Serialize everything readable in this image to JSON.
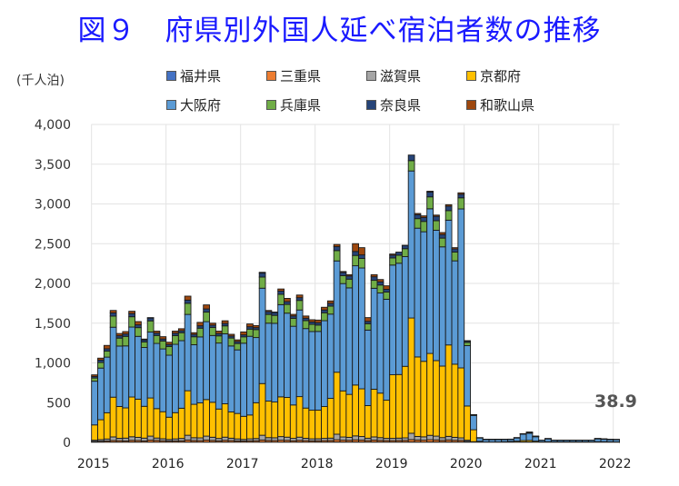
{
  "chart_data": {
    "type": "bar",
    "stacked": true,
    "title": "図９　府県別外国人延べ宿泊者数の推移",
    "ylabel": "(千人泊)",
    "xlabel": "",
    "ylim": [
      0,
      4000
    ],
    "yticks": [
      0,
      500,
      1000,
      1500,
      2000,
      2500,
      3000,
      3500,
      4000
    ],
    "ytick_labels": [
      "0",
      "500",
      "1,000",
      "1,500",
      "2,000",
      "2,500",
      "3,000",
      "3,500",
      "4,000"
    ],
    "xtick_labels": [
      "2015",
      "2016",
      "2017",
      "2018",
      "2019",
      "2020",
      "2021",
      "2022"
    ],
    "grid": true,
    "legend_position": "top",
    "annotation": "38.9",
    "start": "2015-01",
    "series": [
      {
        "name": "福井県",
        "color": "#4472c4",
        "values": [
          3,
          3,
          3,
          4,
          4,
          3,
          4,
          4,
          3,
          4,
          3,
          3,
          3,
          3,
          3,
          4,
          4,
          3,
          4,
          4,
          3,
          4,
          3,
          3,
          3,
          3,
          3,
          4,
          4,
          3,
          4,
          4,
          3,
          4,
          3,
          3,
          4,
          4,
          4,
          5,
          5,
          4,
          5,
          5,
          4,
          5,
          4,
          4,
          4,
          4,
          4,
          5,
          5,
          4,
          5,
          5,
          4,
          5,
          4,
          4,
          3,
          1,
          0.5,
          0.3,
          0.3,
          0.3,
          0.4,
          0.4,
          0.5,
          0.6,
          0.6,
          0.5,
          0.3,
          0.4,
          0.3,
          0.3,
          0.3,
          0.3,
          0.3,
          0.3,
          0.3,
          0.4,
          0.4,
          0.4,
          0.3
        ]
      },
      {
        "name": "三重県",
        "color": "#ed7d31",
        "values": [
          10,
          12,
          15,
          20,
          18,
          16,
          22,
          20,
          16,
          25,
          22,
          18,
          14,
          16,
          17,
          26,
          20,
          19,
          25,
          21,
          17,
          22,
          20,
          16,
          15,
          17,
          18,
          26,
          21,
          20,
          24,
          22,
          18,
          22,
          19,
          17,
          17,
          19,
          20,
          28,
          23,
          22,
          27,
          24,
          19,
          24,
          21,
          19,
          19,
          20,
          21,
          30,
          25,
          24,
          29,
          26,
          21,
          26,
          22,
          21,
          10,
          3,
          1,
          0.5,
          0.5,
          0.5,
          0.6,
          0.8,
          1,
          2,
          2,
          1.5,
          0.8,
          1,
          0.8,
          0.8,
          0.8,
          0.8,
          0.8,
          0.8,
          0.8,
          1.2,
          1.2,
          1,
          0.8
        ]
      },
      {
        "name": "滋賀県",
        "color": "#a5a5a5",
        "values": [
          15,
          20,
          25,
          45,
          30,
          35,
          45,
          40,
          35,
          50,
          30,
          25,
          20,
          25,
          30,
          60,
          35,
          35,
          50,
          40,
          30,
          40,
          30,
          25,
          20,
          25,
          28,
          60,
          35,
          35,
          45,
          40,
          30,
          40,
          30,
          25,
          25,
          28,
          30,
          70,
          40,
          38,
          50,
          45,
          30,
          40,
          35,
          28,
          28,
          30,
          32,
          80,
          45,
          42,
          55,
          48,
          35,
          45,
          38,
          32,
          15,
          5,
          2,
          1,
          1,
          1,
          1.5,
          2,
          2,
          3,
          3,
          2,
          1,
          1.5,
          1,
          1,
          1,
          1,
          1,
          1,
          1,
          1.5,
          1.5,
          1.2,
          1
        ]
      },
      {
        "name": "京都府",
        "color": "#ffc000",
        "values": [
          192,
          250,
          330,
          500,
          400,
          380,
          500,
          480,
          400,
          480,
          370,
          340,
          280,
          330,
          380,
          560,
          420,
          440,
          460,
          440,
          370,
          420,
          330,
          320,
          290,
          300,
          450,
          650,
          460,
          450,
          500,
          500,
          420,
          510,
          380,
          360,
          360,
          400,
          500,
          780,
          580,
          540,
          640,
          600,
          410,
          600,
          560,
          480,
          800,
          800,
          900,
          1450,
          1000,
          950,
          1030,
          950,
          900,
          1150,
          920,
          880,
          430,
          150,
          10,
          3,
          3,
          4,
          6,
          9,
          12,
          18,
          20,
          12,
          4,
          6,
          4,
          4,
          4,
          4,
          4,
          4,
          4,
          6,
          6,
          5,
          4
        ]
      },
      {
        "name": "大阪府",
        "color": "#5b9bd5",
        "values": [
          550,
          650,
          700,
          880,
          760,
          780,
          880,
          790,
          740,
          830,
          820,
          790,
          780,
          860,
          850,
          960,
          750,
          830,
          980,
          840,
          830,
          880,
          830,
          800,
          920,
          990,
          820,
          1200,
          980,
          990,
          1160,
          1060,
          990,
          1090,
          1000,
          990,
          990,
          1080,
          1060,
          1400,
          1350,
          1340,
          1500,
          1520,
          950,
          1270,
          1260,
          1270,
          1380,
          1400,
          1380,
          1850,
          1620,
          1630,
          1820,
          1640,
          1500,
          1570,
          1300,
          2000,
          760,
          180,
          42,
          30,
          30,
          30,
          28,
          25,
          40,
          80,
          90,
          55,
          20,
          35,
          20,
          20,
          20,
          20,
          20,
          20,
          20,
          35,
          30,
          27,
          27
        ]
      },
      {
        "name": "兵庫県",
        "color": "#70ad47",
        "values": [
          40,
          70,
          75,
          140,
          100,
          120,
          130,
          110,
          70,
          140,
          100,
          100,
          110,
          110,
          100,
          140,
          100,
          110,
          120,
          100,
          90,
          100,
          100,
          80,
          80,
          90,
          100,
          140,
          110,
          100,
          130,
          110,
          100,
          120,
          100,
          90,
          80,
          100,
          100,
          130,
          100,
          110,
          130,
          120,
          80,
          100,
          100,
          90,
          90,
          100,
          100,
          130,
          120,
          130,
          150,
          120,
          110,
          120,
          110,
          140,
          40,
          8,
          2,
          2,
          2,
          2,
          2,
          2,
          3,
          4,
          5,
          4,
          2,
          2,
          2,
          2,
          2,
          2,
          2,
          2,
          2,
          3,
          3,
          2.5,
          2.5
        ]
      },
      {
        "name": "奈良県",
        "color": "#264478",
        "values": [
          20,
          30,
          30,
          40,
          30,
          30,
          40,
          35,
          25,
          35,
          30,
          25,
          25,
          30,
          25,
          40,
          30,
          30,
          40,
          30,
          30,
          30,
          25,
          25,
          25,
          30,
          25,
          50,
          35,
          35,
          40,
          35,
          30,
          35,
          30,
          30,
          30,
          35,
          35,
          50,
          40,
          40,
          50,
          45,
          30,
          45,
          40,
          35,
          35,
          40,
          40,
          70,
          50,
          50,
          60,
          55,
          45,
          55,
          40,
          45,
          15,
          2,
          1,
          0.5,
          0.5,
          0.5,
          0.5,
          0.8,
          1,
          1.5,
          2,
          1.5,
          0.5,
          1,
          0.5,
          0.5,
          0.5,
          0.5,
          0.5,
          0.5,
          0.5,
          1,
          1,
          0.8,
          0.8
        ]
      },
      {
        "name": "和歌山県",
        "color": "#9e480e",
        "values": [
          20,
          25,
          42,
          31,
          28,
          30,
          29,
          41,
          11,
          6,
          25,
          29,
          28,
          26,
          25,
          50,
          21,
          43,
          51,
          25,
          30,
          34,
          22,
          21,
          37,
          35,
          26,
          10,
          15,
          7,
          27,
          41,
          20,
          33,
          28,
          28,
          33,
          34,
          31,
          27,
          12,
          16,
          98,
          91,
          47,
          26,
          29,
          44,
          14,
          0,
          3,
          -95,
          15,
          20,
          11,
          16,
          25,
          19,
          16,
          18,
          7,
          1,
          1.5,
          2.7,
          2.7,
          1.7,
          1.6,
          1.3,
          0.5,
          0.9,
          8.4,
          3.5,
          0.6,
          3.1,
          0.6,
          0.6,
          0.6,
          0.6,
          0.6,
          0.6,
          0.6,
          1.9,
          1.9,
          1.9,
          1.6
        ]
      }
    ]
  },
  "legend": {
    "items": [
      {
        "label": "福井県",
        "color": "#4472c4"
      },
      {
        "label": "三重県",
        "color": "#ed7d31"
      },
      {
        "label": "滋賀県",
        "color": "#a5a5a5"
      },
      {
        "label": "京都府",
        "color": "#ffc000"
      },
      {
        "label": "大阪府",
        "color": "#5b9bd5"
      },
      {
        "label": "兵庫県",
        "color": "#70ad47"
      },
      {
        "label": "奈良県",
        "color": "#264478"
      },
      {
        "label": "和歌山県",
        "color": "#9e480e"
      }
    ]
  }
}
